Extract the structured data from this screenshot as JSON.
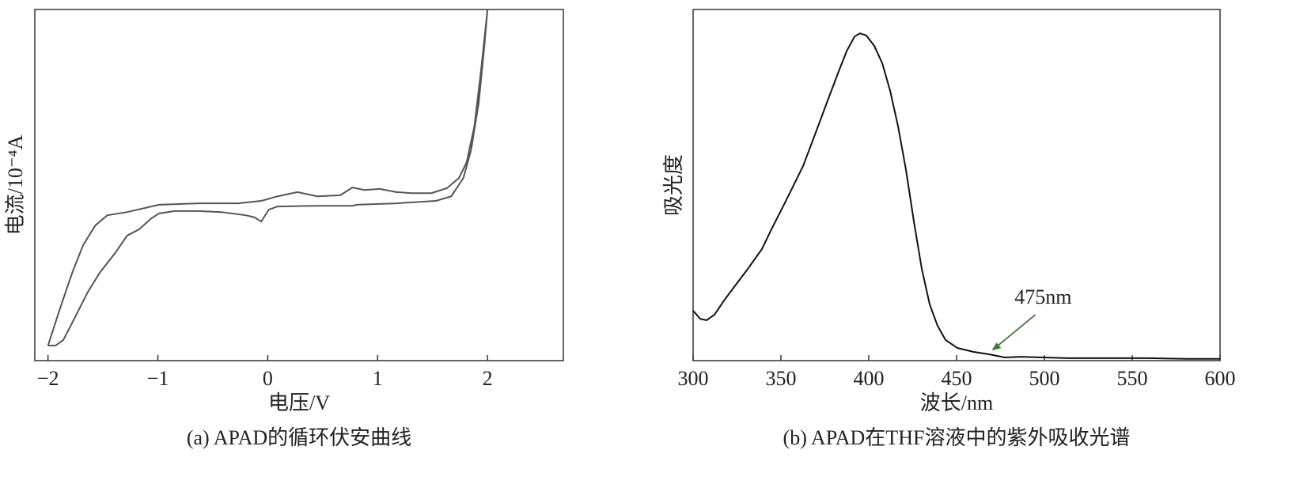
{
  "chart_data": [
    {
      "type": "line",
      "caption": "(a) APAD的循环伏安曲线",
      "xlabel": "电压/V",
      "ylabel": "电流/10⁻⁴A",
      "color": "#555555",
      "xlim": [
        -2.12,
        2.69
      ],
      "ylim": [
        0,
        100
      ],
      "xticks": [
        {
          "value": -2,
          "label": "−2"
        },
        {
          "value": -1,
          "label": "−1"
        },
        0,
        1,
        2
      ],
      "x": [
        -2.0,
        -1.89,
        -1.78,
        -1.68,
        -1.57,
        -1.46,
        -1.28,
        -0.99,
        -0.63,
        -0.27,
        -0.06,
        0.09,
        0.27,
        0.45,
        0.66,
        0.77,
        0.88,
        1.02,
        1.17,
        1.31,
        1.49,
        1.63,
        1.74,
        1.81,
        1.88,
        1.94,
        2.0,
        1.97,
        1.92,
        1.85,
        1.78,
        1.67,
        1.53,
        1.17,
        0.81,
        0.77,
        0.66,
        0.45,
        0.09,
        0.01,
        -0.06,
        -0.12,
        -0.2,
        -0.42,
        -0.63,
        -0.85,
        -0.99,
        -1.06,
        -1.17,
        -1.28,
        -1.39,
        -1.53,
        -1.64,
        -1.75,
        -1.86,
        -1.93,
        -2.0
      ],
      "values": [
        4.3,
        14.9,
        25.0,
        32.9,
        38.5,
        41.4,
        42.3,
        44.4,
        44.8,
        44.8,
        45.5,
        46.8,
        48.0,
        46.8,
        47.1,
        49.3,
        48.6,
        48.9,
        48.0,
        47.7,
        47.7,
        49.1,
        52.0,
        56.5,
        66.7,
        82.4,
        100,
        89.2,
        73.4,
        59.9,
        52.0,
        46.8,
        45.5,
        44.8,
        44.4,
        44.1,
        44.1,
        44.1,
        43.9,
        43.0,
        39.6,
        40.8,
        41.4,
        42.3,
        42.6,
        42.6,
        41.9,
        40.5,
        37.4,
        35.6,
        30.6,
        25.0,
        19.4,
        12.6,
        5.9,
        4.3,
        4.3
      ]
    },
    {
      "type": "line",
      "caption": "(b) APAD在THF溶液中的紫外吸收光谱",
      "xlabel": "波长/nm",
      "ylabel": "吸光度",
      "color": "#111111",
      "xlim": [
        300,
        600
      ],
      "ylim": [
        0,
        100
      ],
      "xticks": [
        300,
        350,
        400,
        450,
        500,
        550,
        600
      ],
      "x": [
        300,
        304.1,
        307.7,
        312.2,
        317.6,
        324.3,
        331.1,
        339.2,
        344.6,
        351.4,
        355.9,
        362.6,
        369.4,
        376.1,
        382.9,
        387.4,
        391.9,
        395.0,
        398.6,
        403.2,
        407.7,
        412.2,
        416.7,
        421.2,
        425.7,
        430.2,
        434.7,
        439.2,
        443.7,
        450.5,
        459.5,
        468.5,
        477.5,
        486.5,
        500.0,
        513.5,
        536.0,
        558.6,
        581.1,
        600
      ],
      "values": [
        14.2,
        11.9,
        11.5,
        13.1,
        17.1,
        21.6,
        26.1,
        31.8,
        37.4,
        44.1,
        48.6,
        55.4,
        64.4,
        73.4,
        82.4,
        88.1,
        92.3,
        93.2,
        92.6,
        89.6,
        84.7,
        76.8,
        66.7,
        54.3,
        39.6,
        26.1,
        16.0,
        9.9,
        5.9,
        3.6,
        2.5,
        1.8,
        0.9,
        1.1,
        0.9,
        0.7,
        0.7,
        0.7,
        0.5,
        0.5
      ],
      "annotations": [
        {
          "text": "475nm",
          "x": 470,
          "y": 2.9,
          "color": "#3d7a3d"
        }
      ]
    }
  ]
}
